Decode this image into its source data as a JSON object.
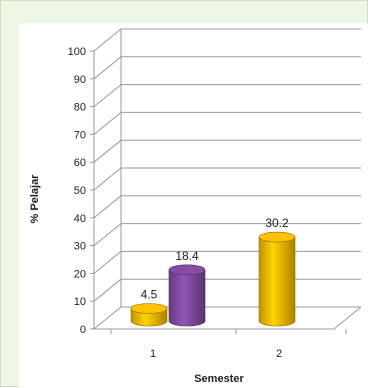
{
  "chart_data": {
    "type": "bar",
    "style": "3d-cylinder",
    "categories": [
      "1",
      "2"
    ],
    "series": [
      {
        "values": [
          4.5,
          30.2
        ],
        "color": "#f5b800"
      },
      {
        "values": [
          18.4,
          null
        ],
        "color": "#7f4a9e"
      }
    ],
    "data_labels": [
      "4.5",
      "18.4",
      "30.2"
    ],
    "xlabel": "Semester",
    "ylabel": "% Pelajar",
    "ylim": [
      0,
      100
    ],
    "yticks": [
      0,
      10,
      20,
      30,
      40,
      50,
      60,
      70,
      80,
      90,
      100
    ],
    "grid": true
  },
  "colors": {
    "frame_background": "#eef6e4",
    "plot_background": "#ffffff",
    "grid": "#9a9a9a"
  }
}
